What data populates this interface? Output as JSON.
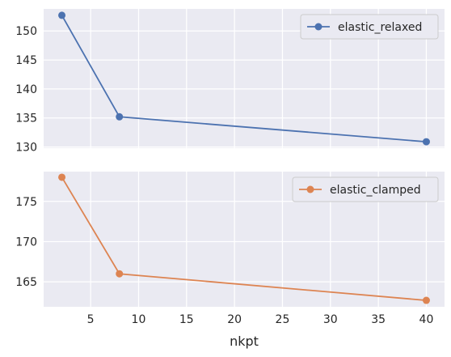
{
  "chart_data": [
    {
      "type": "line",
      "x": [
        2,
        8,
        40
      ],
      "series": [
        {
          "name": "elastic_relaxed",
          "values": [
            152.7,
            135.2,
            130.9
          ],
          "color": "#4c72b0"
        }
      ],
      "title": "",
      "xlabel": "",
      "ylabel": "",
      "xlim": [
        0.1,
        41.9
      ],
      "ylim": [
        129.8,
        153.8
      ],
      "xticks": [
        5,
        10,
        15,
        20,
        25,
        30,
        35,
        40
      ],
      "xtick_labels_visible": false,
      "yticks": [
        130,
        135,
        140,
        145,
        150
      ],
      "ytick_labels": [
        "130",
        "135",
        "140",
        "145",
        "150"
      ],
      "grid": true,
      "legend": "top-right",
      "marker": "circle"
    },
    {
      "type": "line",
      "x": [
        2,
        8,
        40
      ],
      "series": [
        {
          "name": "elastic_clamped",
          "values": [
            178.0,
            166.0,
            162.7
          ],
          "color": "#dd8452"
        }
      ],
      "title": "",
      "xlabel": "nkpt",
      "ylabel": "",
      "xlim": [
        0.1,
        41.9
      ],
      "ylim": [
        161.9,
        178.7
      ],
      "xticks": [
        5,
        10,
        15,
        20,
        25,
        30,
        35,
        40
      ],
      "xtick_labels": [
        "5",
        "10",
        "15",
        "20",
        "25",
        "30",
        "35",
        "40"
      ],
      "yticks": [
        165,
        170,
        175
      ],
      "ytick_labels": [
        "165",
        "170",
        "175"
      ],
      "grid": true,
      "legend": "top-right",
      "marker": "circle"
    }
  ]
}
